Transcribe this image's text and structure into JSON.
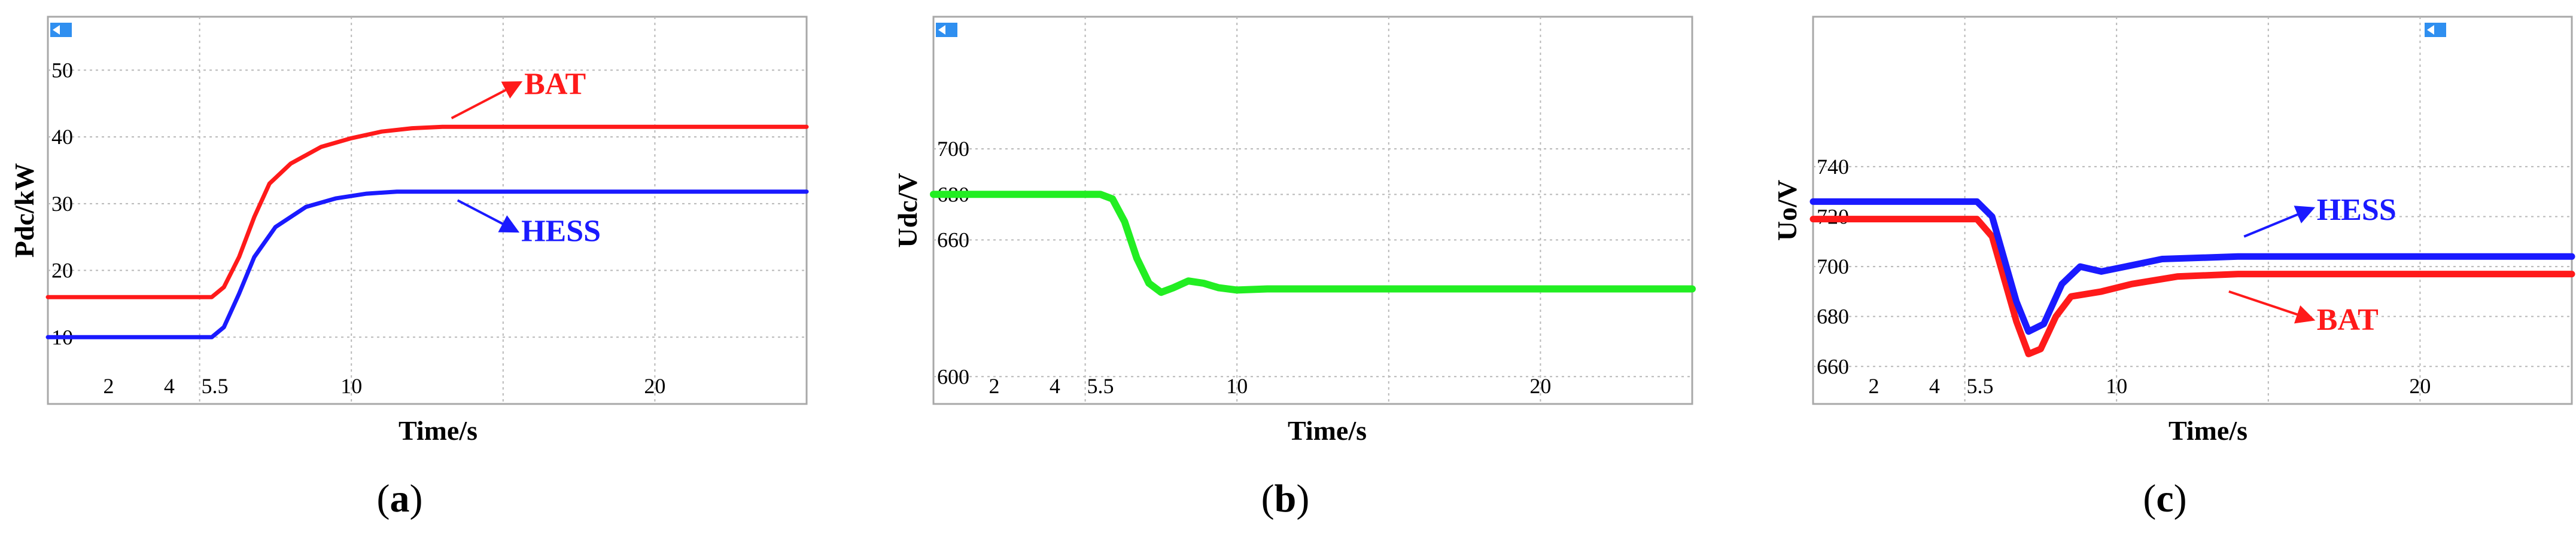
{
  "figure": {
    "captions": [
      "a",
      "b",
      "c"
    ]
  },
  "colors": {
    "bat": "#ff1a1a",
    "hess": "#1a1aff",
    "udc": "#22ee22",
    "grid": "#b8b8b8",
    "frame": "#a8a8a8",
    "marker": "#2f8ff0"
  },
  "chart_data": [
    {
      "type": "line",
      "xlabel": "Time/s",
      "ylabel": "Pdc/kW",
      "xlim": [
        0,
        25
      ],
      "ylim": [
        0,
        58
      ],
      "xticks": [
        2,
        4,
        5.5,
        10,
        20
      ],
      "yticks": [
        10,
        20,
        30,
        40,
        50
      ],
      "grid": true,
      "series": [
        {
          "name": "BAT",
          "color": "#ff1a1a",
          "width": 7,
          "points": [
            [
              0,
              16
            ],
            [
              5.4,
              16
            ],
            [
              5.8,
              17.5
            ],
            [
              6.3,
              22
            ],
            [
              6.8,
              28
            ],
            [
              7.3,
              33
            ],
            [
              8,
              36
            ],
            [
              9,
              38.5
            ],
            [
              10,
              39.8
            ],
            [
              11,
              40.8
            ],
            [
              12,
              41.3
            ],
            [
              13,
              41.5
            ],
            [
              25,
              41.5
            ]
          ]
        },
        {
          "name": "HESS",
          "color": "#1a1aff",
          "width": 7,
          "points": [
            [
              0,
              10
            ],
            [
              5.4,
              10
            ],
            [
              5.8,
              11.5
            ],
            [
              6.3,
              16.5
            ],
            [
              6.8,
              22
            ],
            [
              7.5,
              26.5
            ],
            [
              8.5,
              29.5
            ],
            [
              9.5,
              30.8
            ],
            [
              10.5,
              31.5
            ],
            [
              11.5,
              31.8
            ],
            [
              25,
              31.8
            ]
          ]
        }
      ],
      "annotations": [
        {
          "text": "BAT",
          "color": "#ff1a1a",
          "from": [
            13.3,
            42.8
          ],
          "to": [
            15.5,
            48
          ]
        },
        {
          "text": "HESS",
          "color": "#1a1aff",
          "from": [
            13.5,
            30.5
          ],
          "to": [
            15.4,
            26
          ]
        }
      ]
    },
    {
      "type": "line",
      "xlabel": "Time/s",
      "ylabel": "Udc/V",
      "xlim": [
        0,
        25
      ],
      "ylim": [
        588,
        758
      ],
      "xticks": [
        2,
        4,
        5.5,
        10,
        20
      ],
      "yticks": [
        600,
        660,
        680,
        700
      ],
      "grid": true,
      "series": [
        {
          "name": "",
          "color": "#22ee22",
          "width": 12,
          "points": [
            [
              0,
              680
            ],
            [
              5.5,
              680
            ],
            [
              5.9,
              678
            ],
            [
              6.3,
              668
            ],
            [
              6.7,
              652
            ],
            [
              7.1,
              641
            ],
            [
              7.5,
              637
            ],
            [
              7.9,
              639
            ],
            [
              8.4,
              642
            ],
            [
              8.9,
              641
            ],
            [
              9.4,
              639
            ],
            [
              10,
              638
            ],
            [
              11,
              638.5
            ],
            [
              25,
              638.5
            ]
          ]
        }
      ],
      "annotations": []
    },
    {
      "type": "line",
      "xlabel": "Time/s",
      "ylabel": "Uo/V",
      "xlim": [
        0,
        25
      ],
      "ylim": [
        645,
        800
      ],
      "xticks": [
        2,
        4,
        5.5,
        10,
        20
      ],
      "yticks": [
        660,
        680,
        700,
        720,
        740
      ],
      "grid": true,
      "series": [
        {
          "name": "BAT",
          "color": "#ff1a1a",
          "width": 11,
          "points": [
            [
              0,
              719
            ],
            [
              5.4,
              719
            ],
            [
              5.9,
              712
            ],
            [
              6.3,
              695
            ],
            [
              6.7,
              678
            ],
            [
              7.1,
              665
            ],
            [
              7.5,
              667
            ],
            [
              8,
              680
            ],
            [
              8.5,
              688
            ],
            [
              9.5,
              690
            ],
            [
              10.5,
              693
            ],
            [
              12,
              696
            ],
            [
              14,
              697
            ],
            [
              25,
              697
            ]
          ]
        },
        {
          "name": "HESS",
          "color": "#1a1aff",
          "width": 11,
          "points": [
            [
              0,
              726
            ],
            [
              5.4,
              726
            ],
            [
              5.9,
              720
            ],
            [
              6.3,
              703
            ],
            [
              6.7,
              686
            ],
            [
              7.1,
              674
            ],
            [
              7.6,
              677
            ],
            [
              8.2,
              693
            ],
            [
              8.8,
              700
            ],
            [
              9.5,
              698
            ],
            [
              10.3,
              700
            ],
            [
              11.5,
              703
            ],
            [
              14,
              704
            ],
            [
              25,
              704
            ]
          ]
        }
      ],
      "annotations": [
        {
          "text": "HESS",
          "color": "#1a1aff",
          "from": [
            14.2,
            712
          ],
          "to": [
            16.4,
            723
          ]
        },
        {
          "text": "BAT",
          "color": "#ff1a1a",
          "from": [
            13.7,
            690
          ],
          "to": [
            16.4,
            679
          ]
        }
      ]
    }
  ]
}
